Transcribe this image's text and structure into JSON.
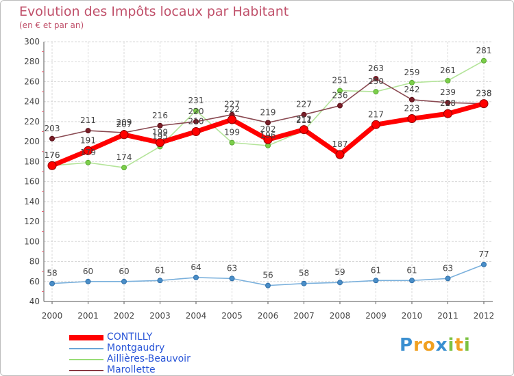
{
  "header": {
    "title": "Evolution des Impôts locaux par Habitant",
    "subtitle": "(en € et par an)"
  },
  "chart_data": {
    "type": "line",
    "title": "Evolution des Impôts locaux par Habitant",
    "subtitle": "(en € et par an)",
    "xlabel": "",
    "ylabel": "",
    "x": [
      "2000",
      "2001",
      "2002",
      "2003",
      "2004",
      "2005",
      "2006",
      "2007",
      "2008",
      "2009",
      "2010",
      "2011",
      "2012"
    ],
    "ylim": [
      40,
      300
    ],
    "yticks": [
      40,
      60,
      80,
      100,
      120,
      140,
      160,
      180,
      200,
      220,
      240,
      260,
      280,
      300
    ],
    "grid": true,
    "legend_position": "bottom-left",
    "series": [
      {
        "name": "CONTILLY",
        "color": "#ff0000",
        "values": [
          176,
          191,
          207,
          199,
          210,
          222,
          202,
          212,
          187,
          217,
          223,
          228,
          238
        ]
      },
      {
        "name": "Montgaudry",
        "color": "#5b9bd5",
        "values": [
          58,
          60,
          60,
          61,
          64,
          63,
          56,
          58,
          59,
          61,
          61,
          63,
          77
        ]
      },
      {
        "name": "Aillières-Beauvoir",
        "color": "#99dd77",
        "values": [
          176,
          179,
          174,
          195,
          231,
          199,
          196,
          211,
          251,
          250,
          259,
          261,
          281
        ]
      },
      {
        "name": "Marollette",
        "color": "#7a2e3a",
        "values": [
          203,
          211,
          209,
          216,
          220,
          227,
          219,
          227,
          236,
          263,
          242,
          239,
          238
        ]
      }
    ]
  },
  "legend": {
    "items": [
      {
        "label": "CONTILLY",
        "color": "#ff0000"
      },
      {
        "label": "Montgaudry",
        "color": "#6aa6d8"
      },
      {
        "label": "Aillières-Beauvoir",
        "color": "#99dd77"
      },
      {
        "label": "Marollette",
        "color": "#8a3a44"
      }
    ]
  },
  "logo": {
    "letters": [
      "P",
      "r",
      "o",
      "x",
      "i",
      "t",
      "i"
    ],
    "colors": [
      "#3a8fd0",
      "#f0a020",
      "#f0a020",
      "#3a8fd0",
      "#7cc242",
      "#f0a020",
      "#7cc242"
    ]
  }
}
